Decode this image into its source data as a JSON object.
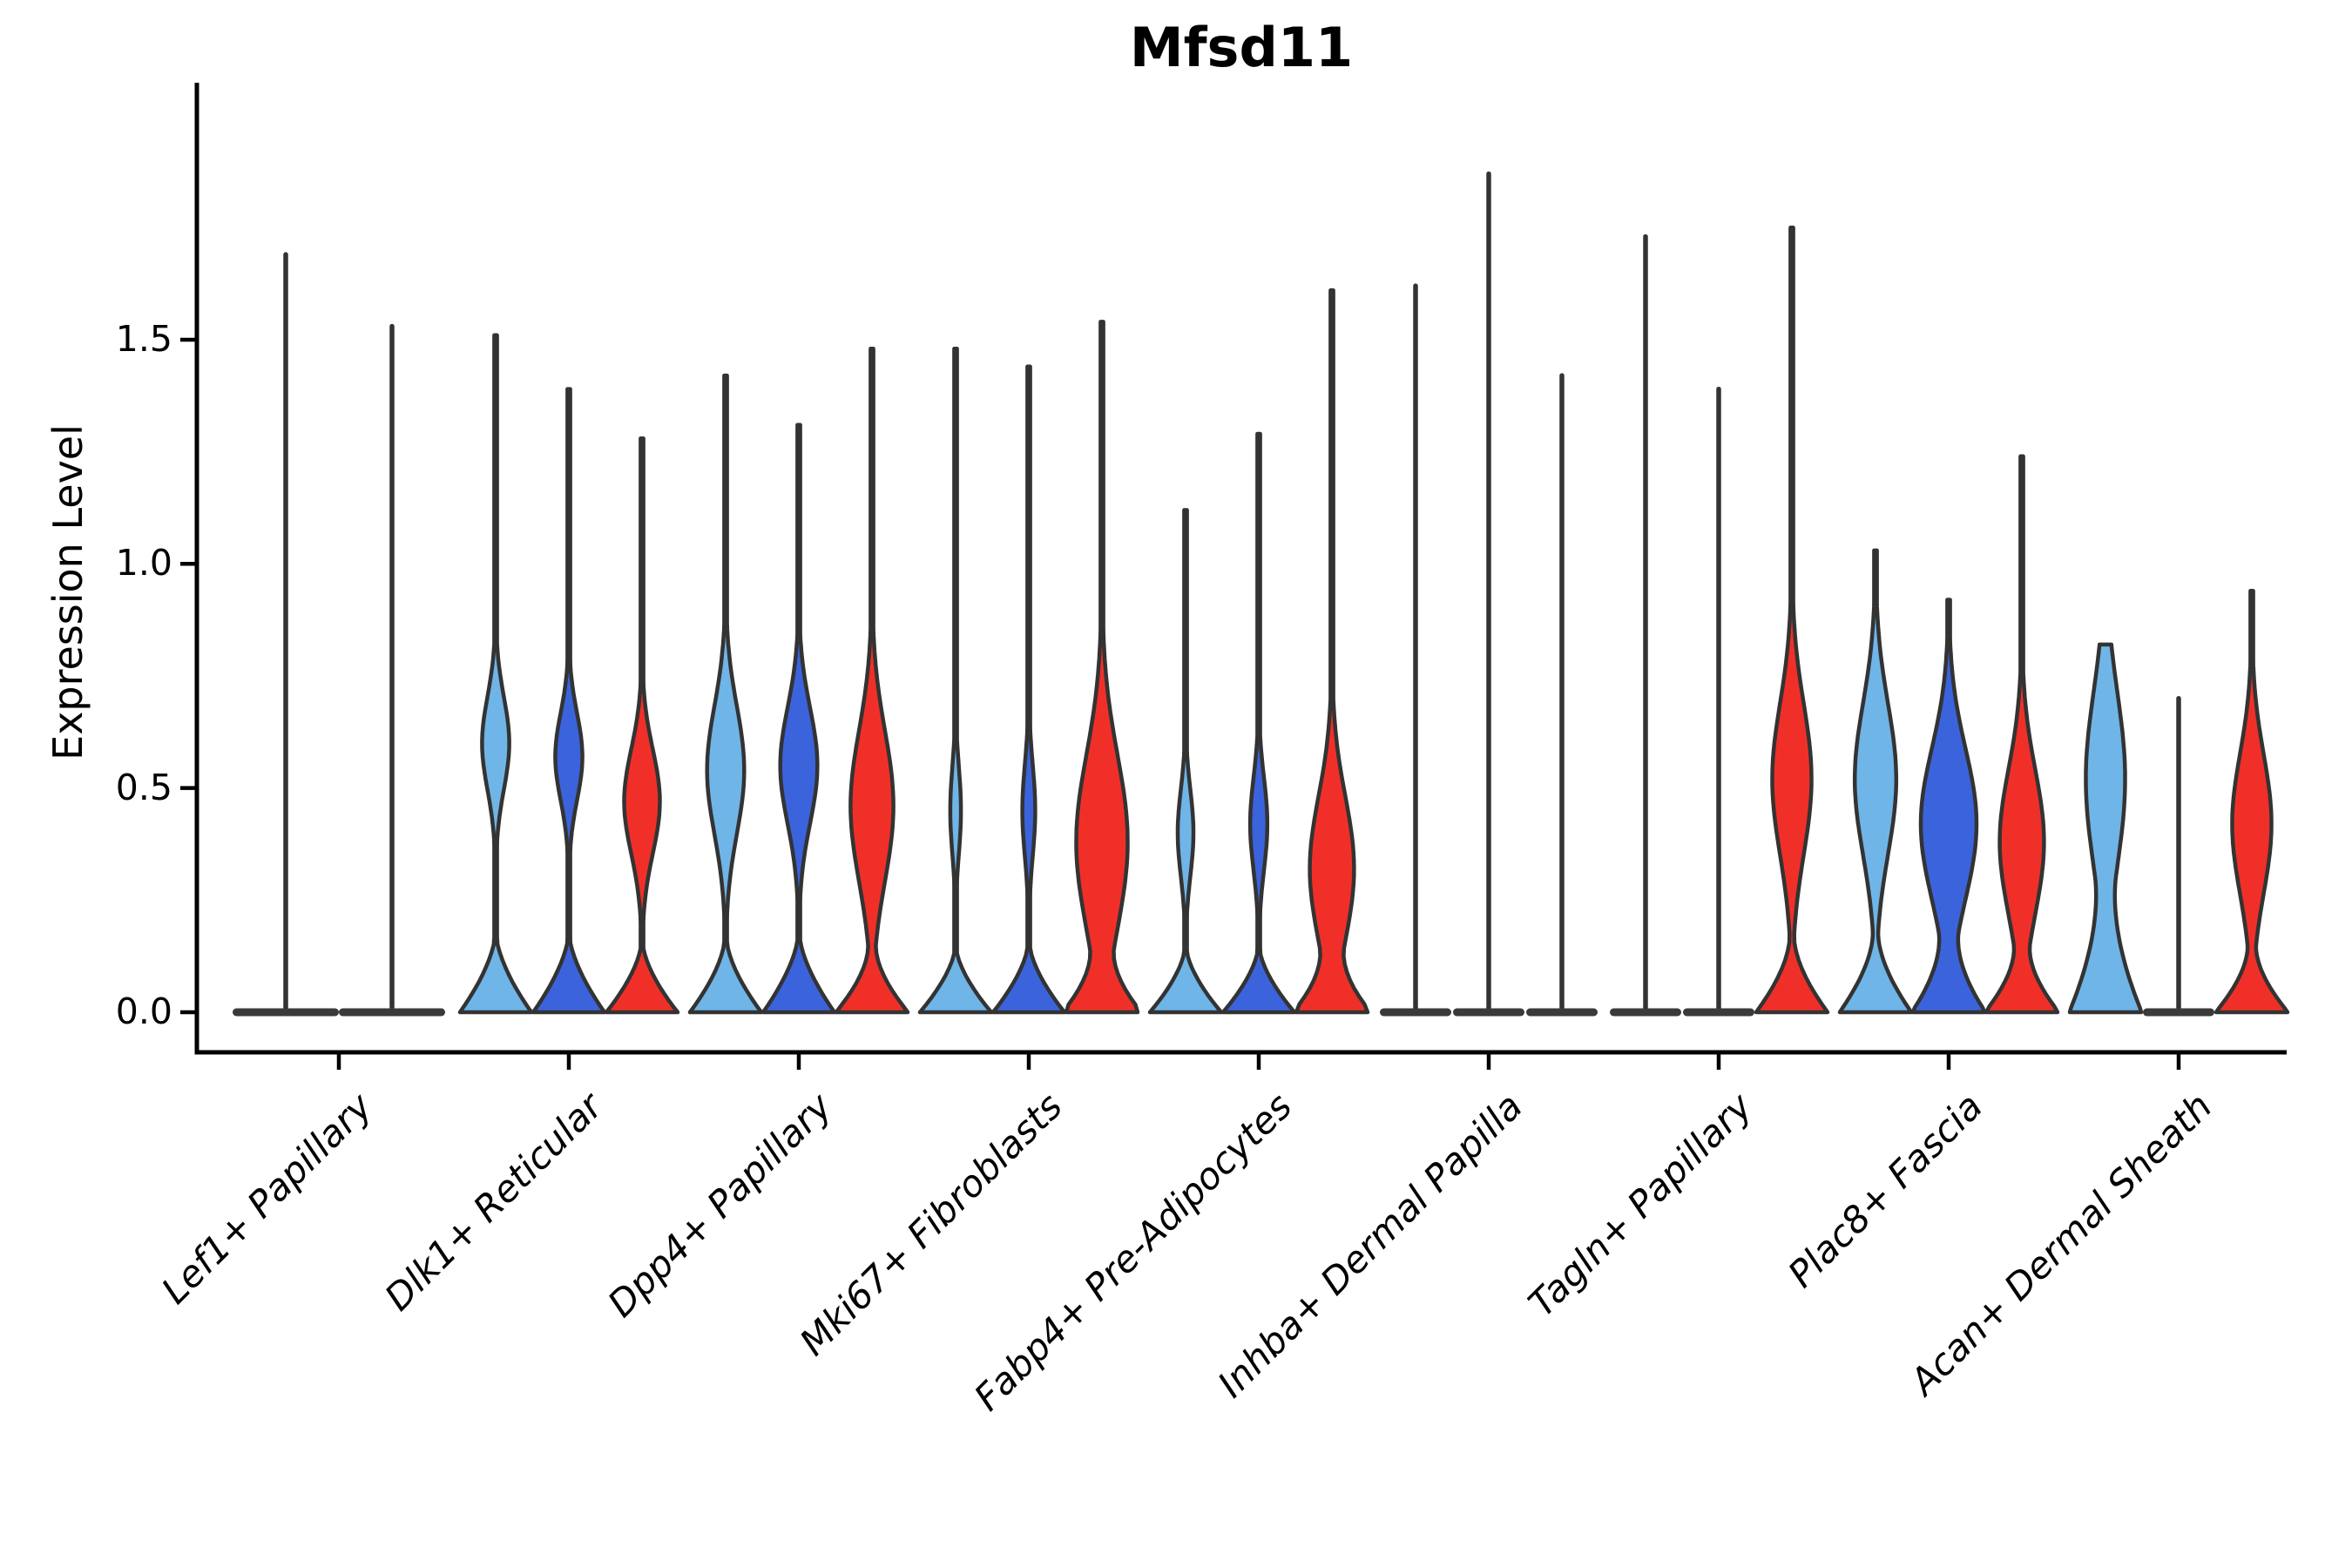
{
  "chart_data": {
    "type": "violin",
    "title": "Mfsd11",
    "ylabel": "Expression Level",
    "xlabel": "",
    "yticks": [
      0.0,
      0.5,
      1.0,
      1.5
    ],
    "ylim": [
      -0.09,
      2.07
    ],
    "grid": false,
    "legend": "none",
    "categories": [
      "Lef1+ Papillary",
      "Dlk1+ Reticular",
      "Dpp4+ Papillary",
      "Mki67+ Fibroblasts",
      "Fabp4+ Pre-Adipocytes",
      "Inhba+ Dermal Papilla",
      "Tagln+ Papillary",
      "Plac8+ Fascia",
      "Acan+ Dermal Sheath"
    ],
    "colors": {
      "light_blue": "#6FB5E8",
      "dark_blue": "#3B64DC",
      "red": "#F03028",
      "flat": "#3A3A3A",
      "outline": "#333333",
      "axis": "#000000"
    },
    "groups": [
      {
        "category": "Lef1+ Papillary",
        "violins": [
          {
            "fill": "flat",
            "flat": true,
            "max": 1.69
          },
          {
            "fill": "flat",
            "flat": true,
            "max": 1.53
          }
        ]
      },
      {
        "category": "Dlk1+ Reticular",
        "violins": [
          {
            "fill": "light_blue",
            "flat": false,
            "max": 1.51,
            "bulge_center": 0.6,
            "bulge_hh": 0.16,
            "bulge_wf": 0.38,
            "base_top": 0.18
          },
          {
            "fill": "dark_blue",
            "flat": false,
            "max": 1.39,
            "bulge_center": 0.57,
            "bulge_hh": 0.15,
            "bulge_wf": 0.38,
            "base_top": 0.18
          },
          {
            "fill": "red",
            "flat": false,
            "max": 1.28,
            "bulge_center": 0.47,
            "bulge_hh": 0.18,
            "bulge_wf": 0.5,
            "base_top": 0.16
          }
        ]
      },
      {
        "category": "Dpp4+ Papillary",
        "violins": [
          {
            "fill": "light_blue",
            "flat": false,
            "max": 1.42,
            "bulge_center": 0.54,
            "bulge_hh": 0.22,
            "bulge_wf": 0.52,
            "base_top": 0.17
          },
          {
            "fill": "dark_blue",
            "flat": false,
            "max": 1.31,
            "bulge_center": 0.55,
            "bulge_hh": 0.2,
            "bulge_wf": 0.52,
            "base_top": 0.18
          },
          {
            "fill": "red",
            "flat": false,
            "max": 1.48,
            "bulge_center": 0.46,
            "bulge_hh": 0.26,
            "bulge_wf": 0.6,
            "base_top": 0.15
          }
        ]
      },
      {
        "category": "Mki67+ Fibroblasts",
        "violins": [
          {
            "fill": "light_blue",
            "flat": false,
            "max": 1.48,
            "bulge_center": 0.45,
            "bulge_hh": 0.15,
            "bulge_wf": 0.15,
            "base_top": 0.15
          },
          {
            "fill": "dark_blue",
            "flat": false,
            "max": 1.44,
            "bulge_center": 0.45,
            "bulge_hh": 0.16,
            "bulge_wf": 0.18,
            "base_top": 0.16
          },
          {
            "fill": "red",
            "flat": false,
            "max": 1.54,
            "bulge_center": 0.38,
            "bulge_hh": 0.3,
            "bulge_wf": 0.72,
            "base_top": 0.14
          }
        ]
      },
      {
        "category": "Fabp4+ Pre-Adipocytes",
        "violins": [
          {
            "fill": "light_blue",
            "flat": false,
            "max": 1.12,
            "bulge_center": 0.4,
            "bulge_hh": 0.15,
            "bulge_wf": 0.22,
            "base_top": 0.15
          },
          {
            "fill": "dark_blue",
            "flat": false,
            "max": 1.29,
            "bulge_center": 0.42,
            "bulge_hh": 0.16,
            "bulge_wf": 0.24,
            "base_top": 0.15
          },
          {
            "fill": "red",
            "flat": false,
            "max": 1.61,
            "bulge_center": 0.32,
            "bulge_hh": 0.25,
            "bulge_wf": 0.62,
            "base_top": 0.14
          }
        ]
      },
      {
        "category": "Inhba+ Dermal Papilla",
        "violins": [
          {
            "fill": "flat",
            "flat": true,
            "max": 1.62
          },
          {
            "fill": "flat",
            "flat": true,
            "max": 1.87
          },
          {
            "fill": "flat",
            "flat": true,
            "max": 1.42
          }
        ]
      },
      {
        "category": "Tagln+ Papillary",
        "violins": [
          {
            "fill": "flat",
            "flat": true,
            "max": 1.73
          },
          {
            "fill": "flat",
            "flat": true,
            "max": 1.39
          },
          {
            "fill": "red",
            "flat": false,
            "max": 1.75,
            "bulge_center": 0.52,
            "bulge_hh": 0.26,
            "bulge_wf": 0.55,
            "base_top": 0.17
          }
        ]
      },
      {
        "category": "Plac8+ Fascia",
        "violins": [
          {
            "fill": "light_blue",
            "flat": false,
            "max": 1.03,
            "bulge_center": 0.52,
            "bulge_hh": 0.26,
            "bulge_wf": 0.58,
            "base_top": 0.18
          },
          {
            "fill": "dark_blue",
            "flat": false,
            "max": 0.92,
            "bulge_center": 0.42,
            "bulge_hh": 0.26,
            "bulge_wf": 0.78,
            "base_top": 0.18
          },
          {
            "fill": "red",
            "flat": false,
            "max": 1.24,
            "bulge_center": 0.38,
            "bulge_hh": 0.25,
            "bulge_wf": 0.62,
            "base_top": 0.15
          }
        ]
      },
      {
        "category": "Acan+ Dermal Sheath",
        "violins": [
          {
            "fill": "light_blue",
            "flat": false,
            "max": 0.82,
            "bulge_center": 0.52,
            "bulge_hh": 0.3,
            "bulge_wf": 0.55,
            "base_top": 0.3
          },
          {
            "fill": "flat",
            "flat": true,
            "max": 0.7
          },
          {
            "fill": "red",
            "flat": false,
            "max": 0.94,
            "bulge_center": 0.42,
            "bulge_hh": 0.24,
            "bulge_wf": 0.55,
            "base_top": 0.15
          }
        ]
      }
    ]
  }
}
